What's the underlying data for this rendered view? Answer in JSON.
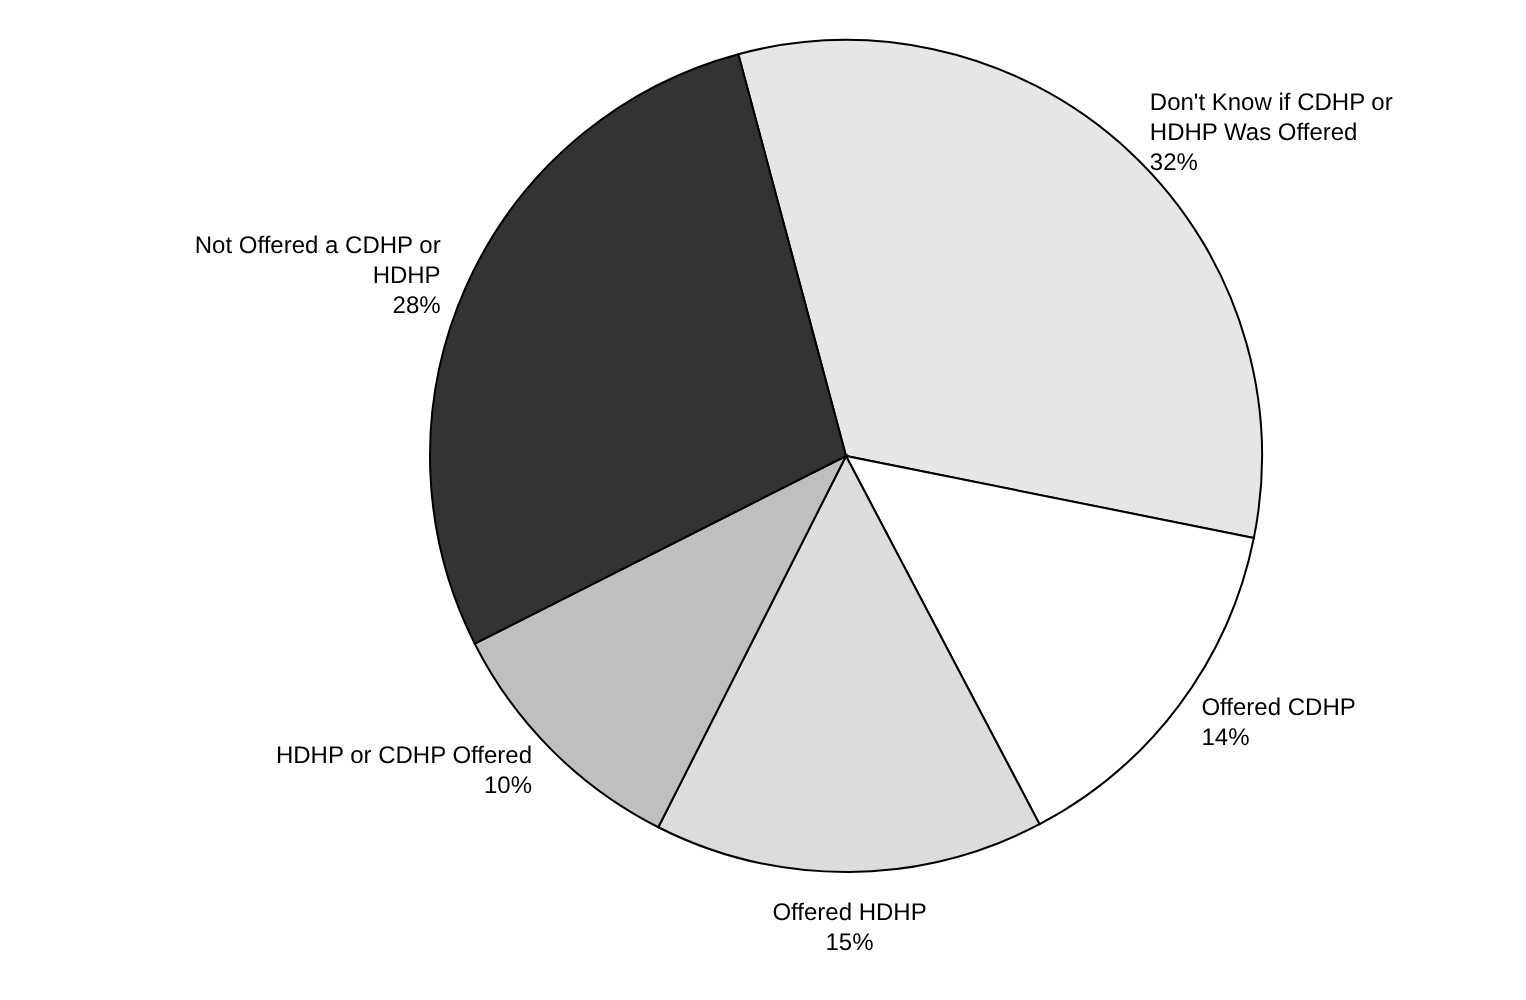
{
  "chart_data": {
    "type": "pie",
    "categories": [
      "Don't Know if CDHP or HDHP Was Offered",
      "Offered CDHP",
      "Offered HDHP",
      "HDHP or CDHP Offered",
      "Not Offered a CDHP or HDHP"
    ],
    "values": [
      32,
      14,
      15,
      10,
      28
    ],
    "value_labels": [
      "32%",
      "14%",
      "15%",
      "10%",
      "28%"
    ],
    "colors": [
      "#e6e6e6",
      "#ffffff",
      "#dcdcdc",
      "#bfbfbf",
      "#333333"
    ],
    "legend": false
  }
}
